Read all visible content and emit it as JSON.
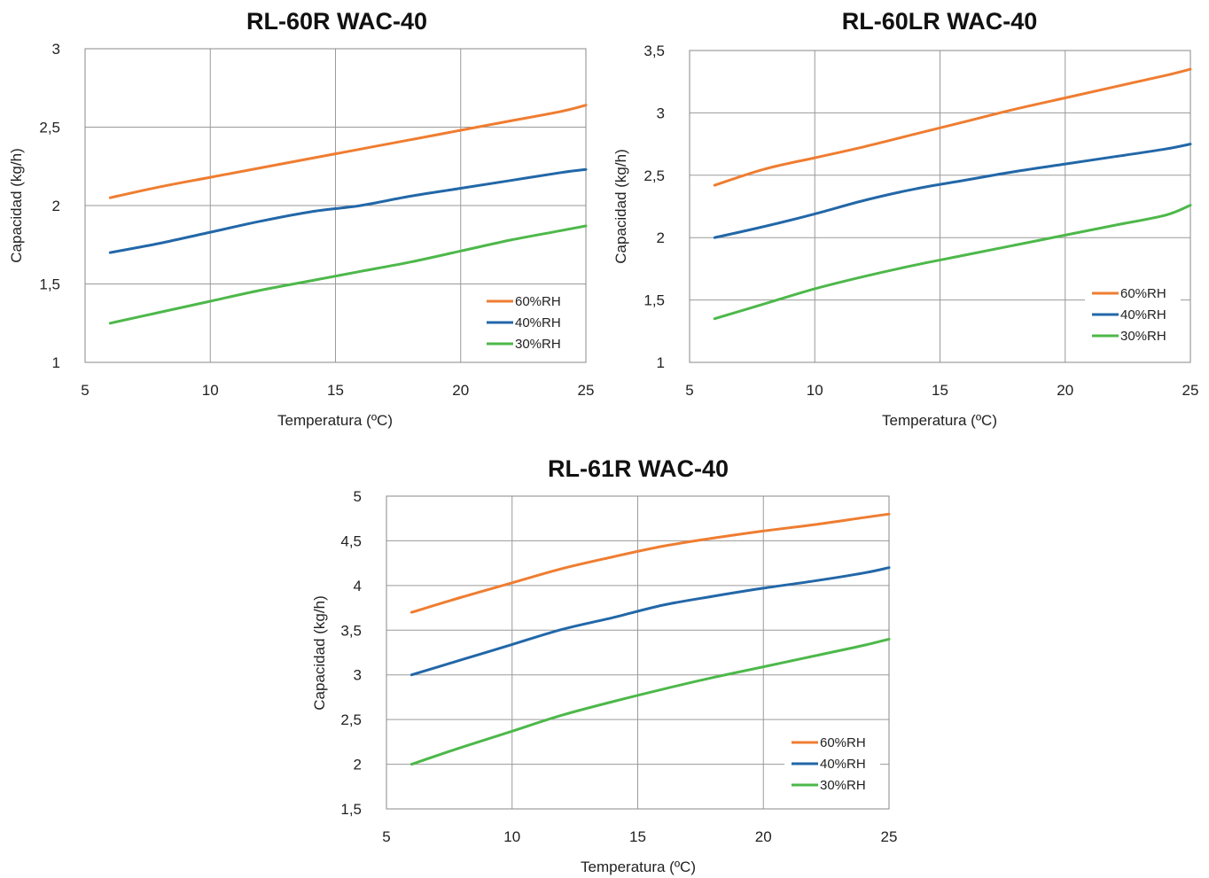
{
  "chart_data": [
    {
      "type": "line",
      "title": "RL-60R WAC-40",
      "xlabel": "Temperatura (ºC)",
      "ylabel": "Capacidad (kg/h)",
      "xlim": [
        5,
        25
      ],
      "ylim": [
        1,
        3
      ],
      "x_ticks": [
        "5",
        "10",
        "15",
        "20",
        "25"
      ],
      "y_ticks": [
        "1",
        "1,5",
        "2",
        "2,5",
        "3"
      ],
      "grid": true,
      "legend_position": "bottom-right",
      "x": [
        6,
        8,
        10,
        12,
        14,
        16,
        18,
        20,
        22,
        24,
        25
      ],
      "series": [
        {
          "name": "60%RH",
          "color": "#ef7d31",
          "values": [
            2.05,
            2.12,
            2.18,
            2.24,
            2.3,
            2.36,
            2.42,
            2.48,
            2.54,
            2.6,
            2.64
          ]
        },
        {
          "name": "40%RH",
          "color": "#2267a8",
          "values": [
            1.7,
            1.76,
            1.83,
            1.9,
            1.96,
            2.0,
            2.06,
            2.11,
            2.16,
            2.21,
            2.23
          ]
        },
        {
          "name": "30%RH",
          "color": "#4db84a",
          "values": [
            1.25,
            1.32,
            1.39,
            1.46,
            1.52,
            1.58,
            1.64,
            1.71,
            1.78,
            1.84,
            1.87
          ]
        }
      ]
    },
    {
      "type": "line",
      "title": "RL-60LR WAC-40",
      "xlabel": "Temperatura (ºC)",
      "ylabel": "Capacidad (kg/h)",
      "xlim": [
        5,
        25
      ],
      "ylim": [
        1,
        3.5
      ],
      "x_ticks": [
        "5",
        "10",
        "15",
        "20",
        "25"
      ],
      "y_ticks": [
        "1",
        "1,5",
        "2",
        "2,5",
        "3",
        "3,5"
      ],
      "grid": true,
      "legend_position": "bottom-right",
      "x": [
        6,
        8,
        10,
        12,
        14,
        16,
        18,
        20,
        22,
        24,
        25
      ],
      "series": [
        {
          "name": "60%RH",
          "color": "#ef7d31",
          "values": [
            2.42,
            2.55,
            2.64,
            2.73,
            2.83,
            2.93,
            3.03,
            3.12,
            3.21,
            3.3,
            3.35
          ]
        },
        {
          "name": "40%RH",
          "color": "#2267a8",
          "values": [
            2.0,
            2.09,
            2.19,
            2.3,
            2.39,
            2.46,
            2.53,
            2.59,
            2.65,
            2.71,
            2.75
          ]
        },
        {
          "name": "30%RH",
          "color": "#4db84a",
          "values": [
            1.35,
            1.47,
            1.59,
            1.69,
            1.78,
            1.86,
            1.94,
            2.02,
            2.1,
            2.18,
            2.26
          ]
        }
      ]
    },
    {
      "type": "line",
      "title": "RL-61R WAC-40",
      "xlabel": "Temperatura (ºC)",
      "ylabel": "Capacidad (kg/h)",
      "xlim": [
        5,
        25
      ],
      "ylim": [
        1.5,
        5
      ],
      "x_ticks": [
        "5",
        "10",
        "15",
        "20",
        "25"
      ],
      "y_ticks": [
        "1,5",
        "2",
        "2,5",
        "3",
        "3,5",
        "4",
        "4,5",
        "5"
      ],
      "grid": true,
      "legend_position": "bottom-right",
      "x": [
        6,
        8,
        10,
        12,
        14,
        16,
        18,
        20,
        22,
        24,
        25
      ],
      "series": [
        {
          "name": "60%RH",
          "color": "#ef7d31",
          "values": [
            3.7,
            3.87,
            4.03,
            4.19,
            4.32,
            4.44,
            4.53,
            4.61,
            4.68,
            4.76,
            4.8
          ]
        },
        {
          "name": "40%RH",
          "color": "#2267a8",
          "values": [
            3.0,
            3.17,
            3.34,
            3.51,
            3.64,
            3.78,
            3.88,
            3.97,
            4.05,
            4.14,
            4.2
          ]
        },
        {
          "name": "30%RH",
          "color": "#4db84a",
          "values": [
            2.0,
            2.19,
            2.37,
            2.55,
            2.7,
            2.84,
            2.97,
            3.09,
            3.21,
            3.33,
            3.4
          ]
        }
      ]
    }
  ]
}
